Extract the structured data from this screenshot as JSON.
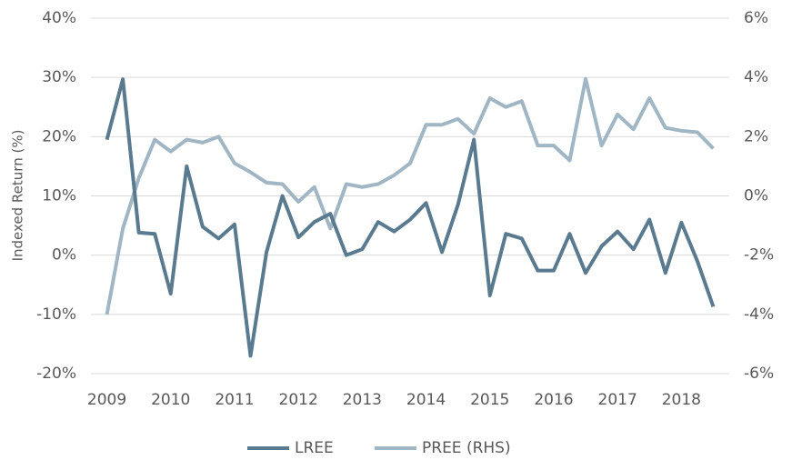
{
  "chart_data": {
    "type": "line",
    "y_label": "Indexed Return (%)",
    "x": [
      2009,
      2009.25,
      2009.5,
      2009.75,
      2010,
      2010.25,
      2010.5,
      2010.75,
      2011,
      2011.25,
      2011.5,
      2011.75,
      2012,
      2012.25,
      2012.5,
      2012.75,
      2013,
      2013.25,
      2013.5,
      2013.75,
      2014,
      2014.25,
      2014.5,
      2014.75,
      2015,
      2015.25,
      2015.5,
      2015.75,
      2016,
      2016.25,
      2016.5,
      2016.75,
      2017,
      2017.25,
      2017.5,
      2017.75,
      2018,
      2018.25,
      2018.5
    ],
    "xlim": [
      2008.75,
      2018.75
    ],
    "xticks": [
      2009,
      2010,
      2011,
      2012,
      2013,
      2014,
      2015,
      2016,
      2017,
      2018
    ],
    "ylim": [
      -20,
      40
    ],
    "yticks": [
      {
        "value": -20,
        "label": "-20%"
      },
      {
        "value": -10,
        "label": "-10%"
      },
      {
        "value": 0,
        "label": "0%"
      },
      {
        "value": 10,
        "label": "10%"
      },
      {
        "value": 20,
        "label": "20%"
      },
      {
        "value": 30,
        "label": "30%"
      },
      {
        "value": 40,
        "label": "40%"
      }
    ],
    "y2lim": [
      -6,
      6
    ],
    "y2ticks": [
      {
        "value": -6,
        "label": "-6%"
      },
      {
        "value": -4,
        "label": "-4%"
      },
      {
        "value": -2,
        "label": "-2%"
      },
      {
        "value": 0,
        "label": "0%"
      },
      {
        "value": 2,
        "label": "2%"
      },
      {
        "value": 4,
        "label": "4%"
      },
      {
        "value": 6,
        "label": "6%"
      }
    ],
    "grid": true,
    "legend": "bottom",
    "series": [
      {
        "name": "LREE",
        "color": "#5a7a90",
        "values": [
          19.5,
          29.7,
          3.8,
          3.6,
          -6.5,
          15,
          4.8,
          2.8,
          5.2,
          -17,
          0.5,
          10,
          3,
          5.6,
          7,
          0,
          1,
          5.6,
          4,
          6,
          8.8,
          0.5,
          8.5,
          19.5,
          -6.8,
          3.6,
          2.8,
          -2.6,
          -2.6,
          3.6,
          -3,
          1.5,
          4,
          1,
          6,
          -3,
          5.5,
          -1,
          -8.7
        ]
      },
      {
        "name": "PREE (RHS)",
        "color": "#a0b6c5",
        "axis": "y2",
        "values": [
          -4.0,
          -1.1,
          0.6,
          1.9,
          1.5,
          1.9,
          1.8,
          2.0,
          1.1,
          0.8,
          0.45,
          0.4,
          -0.2,
          0.3,
          -1.1,
          0.4,
          0.3,
          0.4,
          0.7,
          1.1,
          2.4,
          2.4,
          2.6,
          2.1,
          3.3,
          3.0,
          3.2,
          1.7,
          1.7,
          1.2,
          3.95,
          1.7,
          2.75,
          2.25,
          3.3,
          2.3,
          2.2,
          2.15,
          1.6
        ]
      }
    ]
  }
}
